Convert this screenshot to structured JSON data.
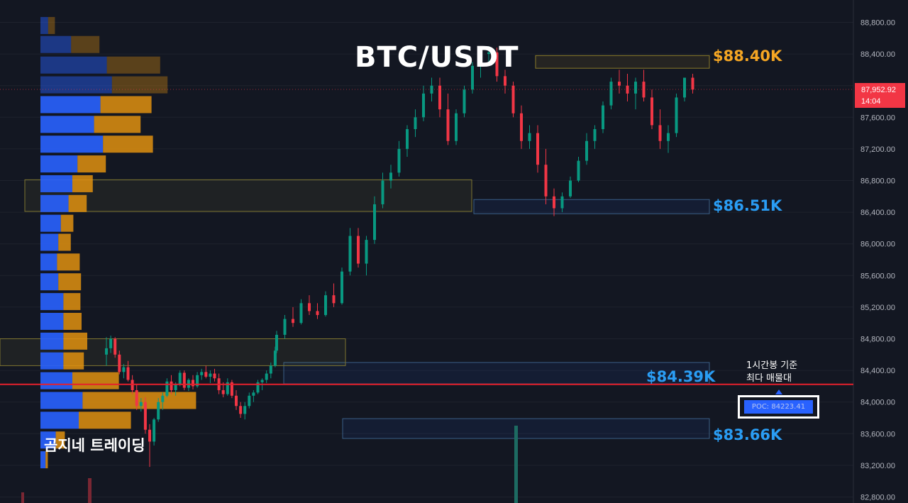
{
  "title": "BTC/USDT",
  "brand": "곰지네 트레이딩",
  "annotation": {
    "line1": "1시간봉 기준",
    "line2": "최다 매물대"
  },
  "poc_label": "POC: 84223.41",
  "current_price": {
    "value": "87,952.92",
    "countdown": "14:04"
  },
  "levels": [
    {
      "label": "$88.40K",
      "color": "#f5a623"
    },
    {
      "label": "$86.51K",
      "color": "#2a9df4"
    },
    {
      "label": "$84.39K",
      "color": "#2a9df4"
    },
    {
      "label": "$83.66K",
      "color": "#2a9df4"
    }
  ],
  "colors": {
    "up": "#089981",
    "down": "#f23645",
    "vp_buy": "#2962ff",
    "vp_sell": "#e0900f",
    "poc_line": "#e5202c"
  },
  "chart_data": {
    "type": "candlestick",
    "y_axis": {
      "min": 82800,
      "max": 88800,
      "step": 400,
      "ticks": [
        "88,800.00",
        "88,400.00",
        "88,000.00",
        "87,600.00",
        "87,200.00",
        "86,800.00",
        "86,400.00",
        "86,000.00",
        "85,600.00",
        "85,200.00",
        "84,800.00",
        "84,400.00",
        "84,000.00",
        "83,600.00",
        "83,200.00",
        "82,800.00"
      ]
    },
    "poc_price": 84223.41,
    "last_price": 87952.92,
    "volume_profile": [
      {
        "price": 88760,
        "buy": 0.06,
        "sell": 0.06
      },
      {
        "price": 88520,
        "buy": 0.24,
        "sell": 0.25
      },
      {
        "price": 88260,
        "buy": 0.52,
        "sell": 0.47
      },
      {
        "price": 88010,
        "buy": 0.56,
        "sell": 0.49
      },
      {
        "price": 87760,
        "buy": 0.47,
        "sell": 0.45
      },
      {
        "price": 87510,
        "buy": 0.42,
        "sell": 0.41
      },
      {
        "price": 87260,
        "buy": 0.49,
        "sell": 0.44
      },
      {
        "price": 87010,
        "buy": 0.29,
        "sell": 0.25
      },
      {
        "price": 86760,
        "buy": 0.25,
        "sell": 0.18
      },
      {
        "price": 86510,
        "buy": 0.22,
        "sell": 0.16
      },
      {
        "price": 86260,
        "buy": 0.16,
        "sell": 0.11
      },
      {
        "price": 86020,
        "buy": 0.14,
        "sell": 0.11
      },
      {
        "price": 85770,
        "buy": 0.13,
        "sell": 0.2
      },
      {
        "price": 85520,
        "buy": 0.14,
        "sell": 0.2
      },
      {
        "price": 85270,
        "buy": 0.18,
        "sell": 0.15
      },
      {
        "price": 85020,
        "buy": 0.18,
        "sell": 0.16
      },
      {
        "price": 84770,
        "buy": 0.18,
        "sell": 0.21
      },
      {
        "price": 84520,
        "buy": 0.18,
        "sell": 0.18
      },
      {
        "price": 84270,
        "buy": 0.25,
        "sell": 0.41
      },
      {
        "price": 84020,
        "buy": 0.33,
        "sell": 1.0
      },
      {
        "price": 83770,
        "buy": 0.3,
        "sell": 0.46
      },
      {
        "price": 83520,
        "buy": 0.12,
        "sell": 0.08
      },
      {
        "price": 83270,
        "buy": 0.04,
        "sell": 0.02
      }
    ],
    "zones": [
      {
        "type": "resistance",
        "x0": 755,
        "x1": 1000,
        "top": 88380,
        "bottom": 88220
      },
      {
        "type": "support",
        "x0": 668,
        "x1": 1000,
        "top": 86560,
        "bottom": 86380
      },
      {
        "type": "support",
        "x0": 400,
        "x1": 1000,
        "top": 84500,
        "bottom": 84230
      },
      {
        "type": "support",
        "x0": 483,
        "x1": 1000,
        "top": 83790,
        "bottom": 83540
      },
      {
        "type": "zone",
        "x0": 35,
        "x1": 665,
        "top": 86810,
        "bottom": 86410
      },
      {
        "type": "zone",
        "x0": 0,
        "x1": 487,
        "top": 84800,
        "bottom": 84460
      }
    ],
    "candles": [
      [
        84600,
        84820,
        84460,
        84680
      ],
      [
        84680,
        84840,
        84620,
        84800
      ],
      [
        84800,
        84820,
        84560,
        84600
      ],
      [
        84600,
        84650,
        84350,
        84380
      ],
      [
        84380,
        84480,
        84300,
        84440
      ],
      [
        84440,
        84520,
        84260,
        84280
      ],
      [
        84280,
        84340,
        84100,
        84150
      ],
      [
        84150,
        84220,
        83900,
        83950
      ],
      [
        83950,
        84050,
        83880,
        84000
      ],
      [
        84000,
        84060,
        83600,
        83650
      ],
      [
        83650,
        83720,
        83180,
        83500
      ],
      [
        83500,
        83800,
        83450,
        83780
      ],
      [
        83780,
        84050,
        83750,
        84000
      ],
      [
        84000,
        84120,
        83900,
        84080
      ],
      [
        84080,
        84300,
        84060,
        84260
      ],
      [
        84260,
        84340,
        84100,
        84150
      ],
      [
        84150,
        84250,
        84080,
        84220
      ],
      [
        84220,
        84400,
        84200,
        84370
      ],
      [
        84370,
        84400,
        84150,
        84180
      ],
      [
        84180,
        84300,
        84140,
        84280
      ],
      [
        84280,
        84340,
        84160,
        84200
      ],
      [
        84200,
        84380,
        84180,
        84340
      ],
      [
        84340,
        84420,
        84280,
        84380
      ],
      [
        84380,
        84460,
        84300,
        84320
      ],
      [
        84320,
        84400,
        84240,
        84360
      ],
      [
        84360,
        84420,
        84260,
        84300
      ],
      [
        84300,
        84360,
        84100,
        84150
      ],
      [
        84150,
        84250,
        84060,
        84100
      ],
      [
        84100,
        84300,
        84080,
        84250
      ],
      [
        84250,
        84280,
        84050,
        84080
      ],
      [
        84080,
        84150,
        83900,
        83950
      ],
      [
        83950,
        84000,
        83800,
        83850
      ],
      [
        83850,
        84000,
        83780,
        83950
      ],
      [
        83950,
        84120,
        83920,
        84080
      ],
      [
        84080,
        84150,
        84000,
        84120
      ],
      [
        84120,
        84280,
        84100,
        84250
      ],
      [
        84250,
        84300,
        84150,
        84280
      ],
      [
        84280,
        84400,
        84240,
        84360
      ],
      [
        84360,
        84500,
        84300,
        84460
      ],
      [
        84460,
        84700,
        84440,
        84650
      ],
      [
        84650,
        84900,
        84620,
        84850
      ],
      [
        84850,
        85100,
        84800,
        85050
      ],
      [
        85050,
        85200,
        84950,
        85000
      ],
      [
        85000,
        85300,
        84980,
        85250
      ],
      [
        85250,
        85350,
        85100,
        85150
      ],
      [
        85150,
        85250,
        85050,
        85100
      ],
      [
        85100,
        85400,
        85080,
        85350
      ],
      [
        85350,
        85500,
        85200,
        85250
      ],
      [
        85250,
        85700,
        85230,
        85650
      ],
      [
        85650,
        86200,
        85600,
        86100
      ],
      [
        86100,
        86200,
        85700,
        85750
      ],
      [
        85750,
        86100,
        85600,
        86050
      ],
      [
        86050,
        86600,
        86000,
        86500
      ],
      [
        86500,
        86900,
        86450,
        86800
      ],
      [
        86800,
        87000,
        86700,
        86900
      ],
      [
        86900,
        87300,
        86850,
        87200
      ],
      [
        87200,
        87500,
        87100,
        87450
      ],
      [
        87450,
        87700,
        87350,
        87600
      ],
      [
        87600,
        88000,
        87550,
        87900
      ],
      [
        87900,
        88100,
        87800,
        88000
      ],
      [
        88000,
        88100,
        87600,
        87700
      ],
      [
        87700,
        87900,
        87250,
        87300
      ],
      [
        87300,
        87700,
        87250,
        87650
      ],
      [
        87650,
        88000,
        87600,
        87950
      ],
      [
        87950,
        88300,
        87900,
        88250
      ],
      [
        88250,
        88450,
        88100,
        88400
      ],
      [
        88400,
        88500,
        88300,
        88420
      ],
      [
        88420,
        88480,
        88050,
        88120
      ],
      [
        88120,
        88200,
        87900,
        88000
      ],
      [
        88000,
        88050,
        87600,
        87650
      ],
      [
        87650,
        87750,
        87200,
        87300
      ],
      [
        87300,
        87500,
        87200,
        87400
      ],
      [
        87400,
        87500,
        86900,
        87000
      ],
      [
        87000,
        87200,
        86500,
        86600
      ],
      [
        86600,
        86700,
        86350,
        86450
      ],
      [
        86450,
        86650,
        86400,
        86600
      ],
      [
        86600,
        86850,
        86580,
        86800
      ],
      [
        86800,
        87100,
        86780,
        87050
      ],
      [
        87050,
        87400,
        87000,
        87300
      ],
      [
        87300,
        87500,
        87200,
        87450
      ],
      [
        87450,
        87800,
        87400,
        87750
      ],
      [
        87750,
        88100,
        87700,
        88050
      ],
      [
        88050,
        88200,
        87900,
        88000
      ],
      [
        88000,
        88150,
        87800,
        87900
      ],
      [
        87900,
        88100,
        87700,
        88050
      ],
      [
        88050,
        88200,
        87800,
        87850
      ],
      [
        87850,
        87950,
        87450,
        87500
      ],
      [
        87500,
        87700,
        87200,
        87300
      ],
      [
        87300,
        87500,
        87150,
        87400
      ],
      [
        87400,
        87900,
        87350,
        87850
      ],
      [
        87850,
        88100,
        87800,
        88100
      ],
      [
        88100,
        88150,
        87900,
        87950
      ]
    ]
  }
}
